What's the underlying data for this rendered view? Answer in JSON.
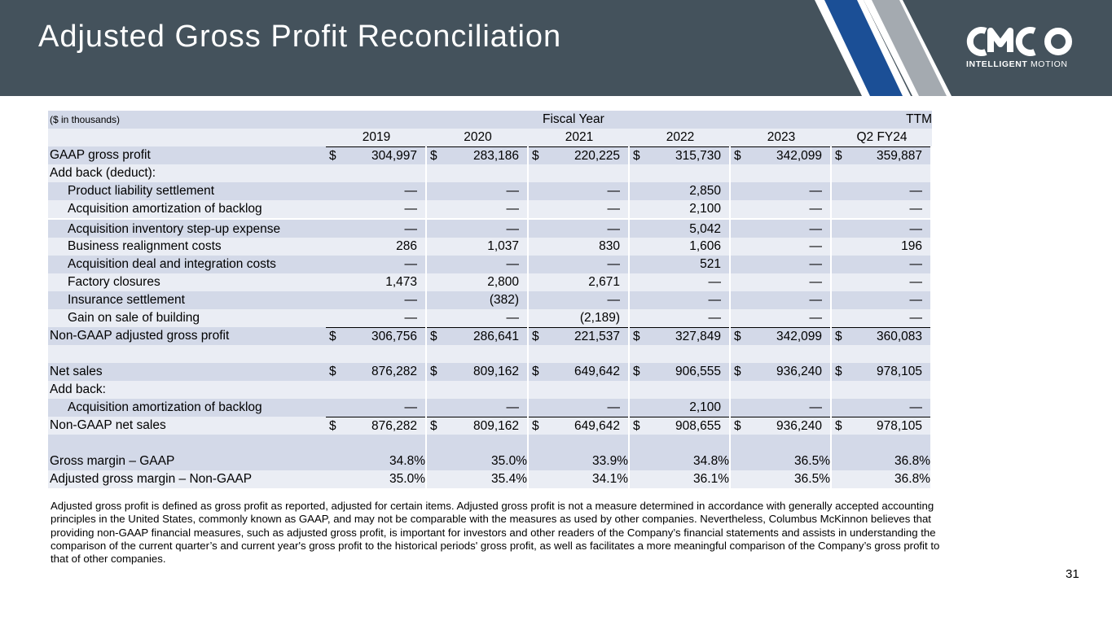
{
  "title": "Adjusted Gross Profit Reconciliation",
  "logo": {
    "text": "CMCO",
    "sub_bold": "INTELLIGENT",
    "sub_light": " MOTION"
  },
  "colors": {
    "header_bg": "#44525c",
    "stripe_blue": "#1b4f96",
    "stripe_gray": "#a4aab0",
    "row_shade": "#d3d9e8"
  },
  "table": {
    "units_label": "($ in thousands)",
    "group_header": "Fiscal Year",
    "ttm_header": "TTM",
    "columns": [
      "2019",
      "2020",
      "2021",
      "2022",
      "2023",
      "Q2 FY24"
    ],
    "rows": [
      {
        "label": "GAAP gross profit",
        "values": [
          "304,997",
          "283,186",
          "220,225",
          "315,730",
          "342,099",
          "359,887"
        ],
        "dollar": true
      },
      {
        "label": "Add back (deduct):",
        "values": [
          "",
          "",
          "",
          "",
          "",
          ""
        ]
      },
      {
        "label": "Product liability settlement",
        "values": [
          "—",
          "—",
          "—",
          "2,850",
          "—",
          "—"
        ]
      },
      {
        "label": "Acquisition amortization of backlog",
        "values": [
          "—",
          "—",
          "—",
          "2,100",
          "—",
          "—"
        ]
      },
      {
        "label": "Acquisition inventory step-up expense",
        "values": [
          "—",
          "—",
          "—",
          "5,042",
          "—",
          "—"
        ]
      },
      {
        "label": "Business realignment costs",
        "values": [
          "286",
          "1,037",
          "830",
          "1,606",
          "—",
          "196"
        ]
      },
      {
        "label": "Acquisition deal and integration costs",
        "values": [
          "—",
          "—",
          "—",
          "521",
          "—",
          "—"
        ]
      },
      {
        "label": "Factory closures",
        "values": [
          "1,473",
          "2,800",
          "2,671",
          "—",
          "—",
          "—"
        ]
      },
      {
        "label": "Insurance settlement",
        "values": [
          "—",
          "(382)",
          "—",
          "—",
          "—",
          "—"
        ]
      },
      {
        "label": "Gain on sale of building",
        "values": [
          "—",
          "—",
          "(2,189)",
          "—",
          "—",
          "—"
        ]
      },
      {
        "label": "Non-GAAP adjusted gross profit",
        "values": [
          "306,756",
          "286,641",
          "221,537",
          "327,849",
          "342,099",
          "360,083"
        ],
        "dollar": true
      },
      {
        "label": "",
        "values": [
          "",
          "",
          "",
          "",
          "",
          ""
        ]
      },
      {
        "label": "Net sales",
        "values": [
          "876,282",
          "809,162",
          "649,642",
          "906,555",
          "936,240",
          "978,105"
        ],
        "dollar": true
      },
      {
        "label": "Add back:",
        "values": [
          "",
          "",
          "",
          "",
          "",
          ""
        ]
      },
      {
        "label": "Acquisition amortization of backlog",
        "values": [
          "—",
          "—",
          "—",
          "2,100",
          "—",
          "—"
        ]
      },
      {
        "label": "Non-GAAP net sales",
        "values": [
          "876,282",
          "809,162",
          "649,642",
          "908,655",
          "936,240",
          "978,105"
        ],
        "dollar": true
      },
      {
        "label": "",
        "values": [
          "",
          "",
          "",
          "",
          "",
          ""
        ]
      },
      {
        "label": "Gross margin – GAAP",
        "values": [
          "34.8%",
          "35.0%",
          "33.9%",
          "34.8%",
          "36.5%",
          "36.8%"
        ]
      },
      {
        "label": "Adjusted gross margin – Non-GAAP",
        "values": [
          "35.0%",
          "35.4%",
          "34.1%",
          "36.1%",
          "36.5%",
          "36.8%"
        ]
      }
    ],
    "dollar_sign": "$"
  },
  "footnote": "Adjusted gross profit is defined as gross profit as reported, adjusted for certain items.  Adjusted gross profit is not a measure determined in accordance with generally accepted accounting principles in the United States, commonly known as GAAP, and may not be comparable with the measures as used by other companies. Nevertheless, Columbus McKinnon believes that providing non-GAAP financial measures, such as adjusted gross profit, is important for investors and other readers of the Company’s financial statements and assists in understanding the comparison of the current quarter’s and current year's gross profit to the historical periods' gross profit, as well as facilitates a more meaningful comparison of the Company’s gross profit to that of other companies.",
  "page_number": "31"
}
